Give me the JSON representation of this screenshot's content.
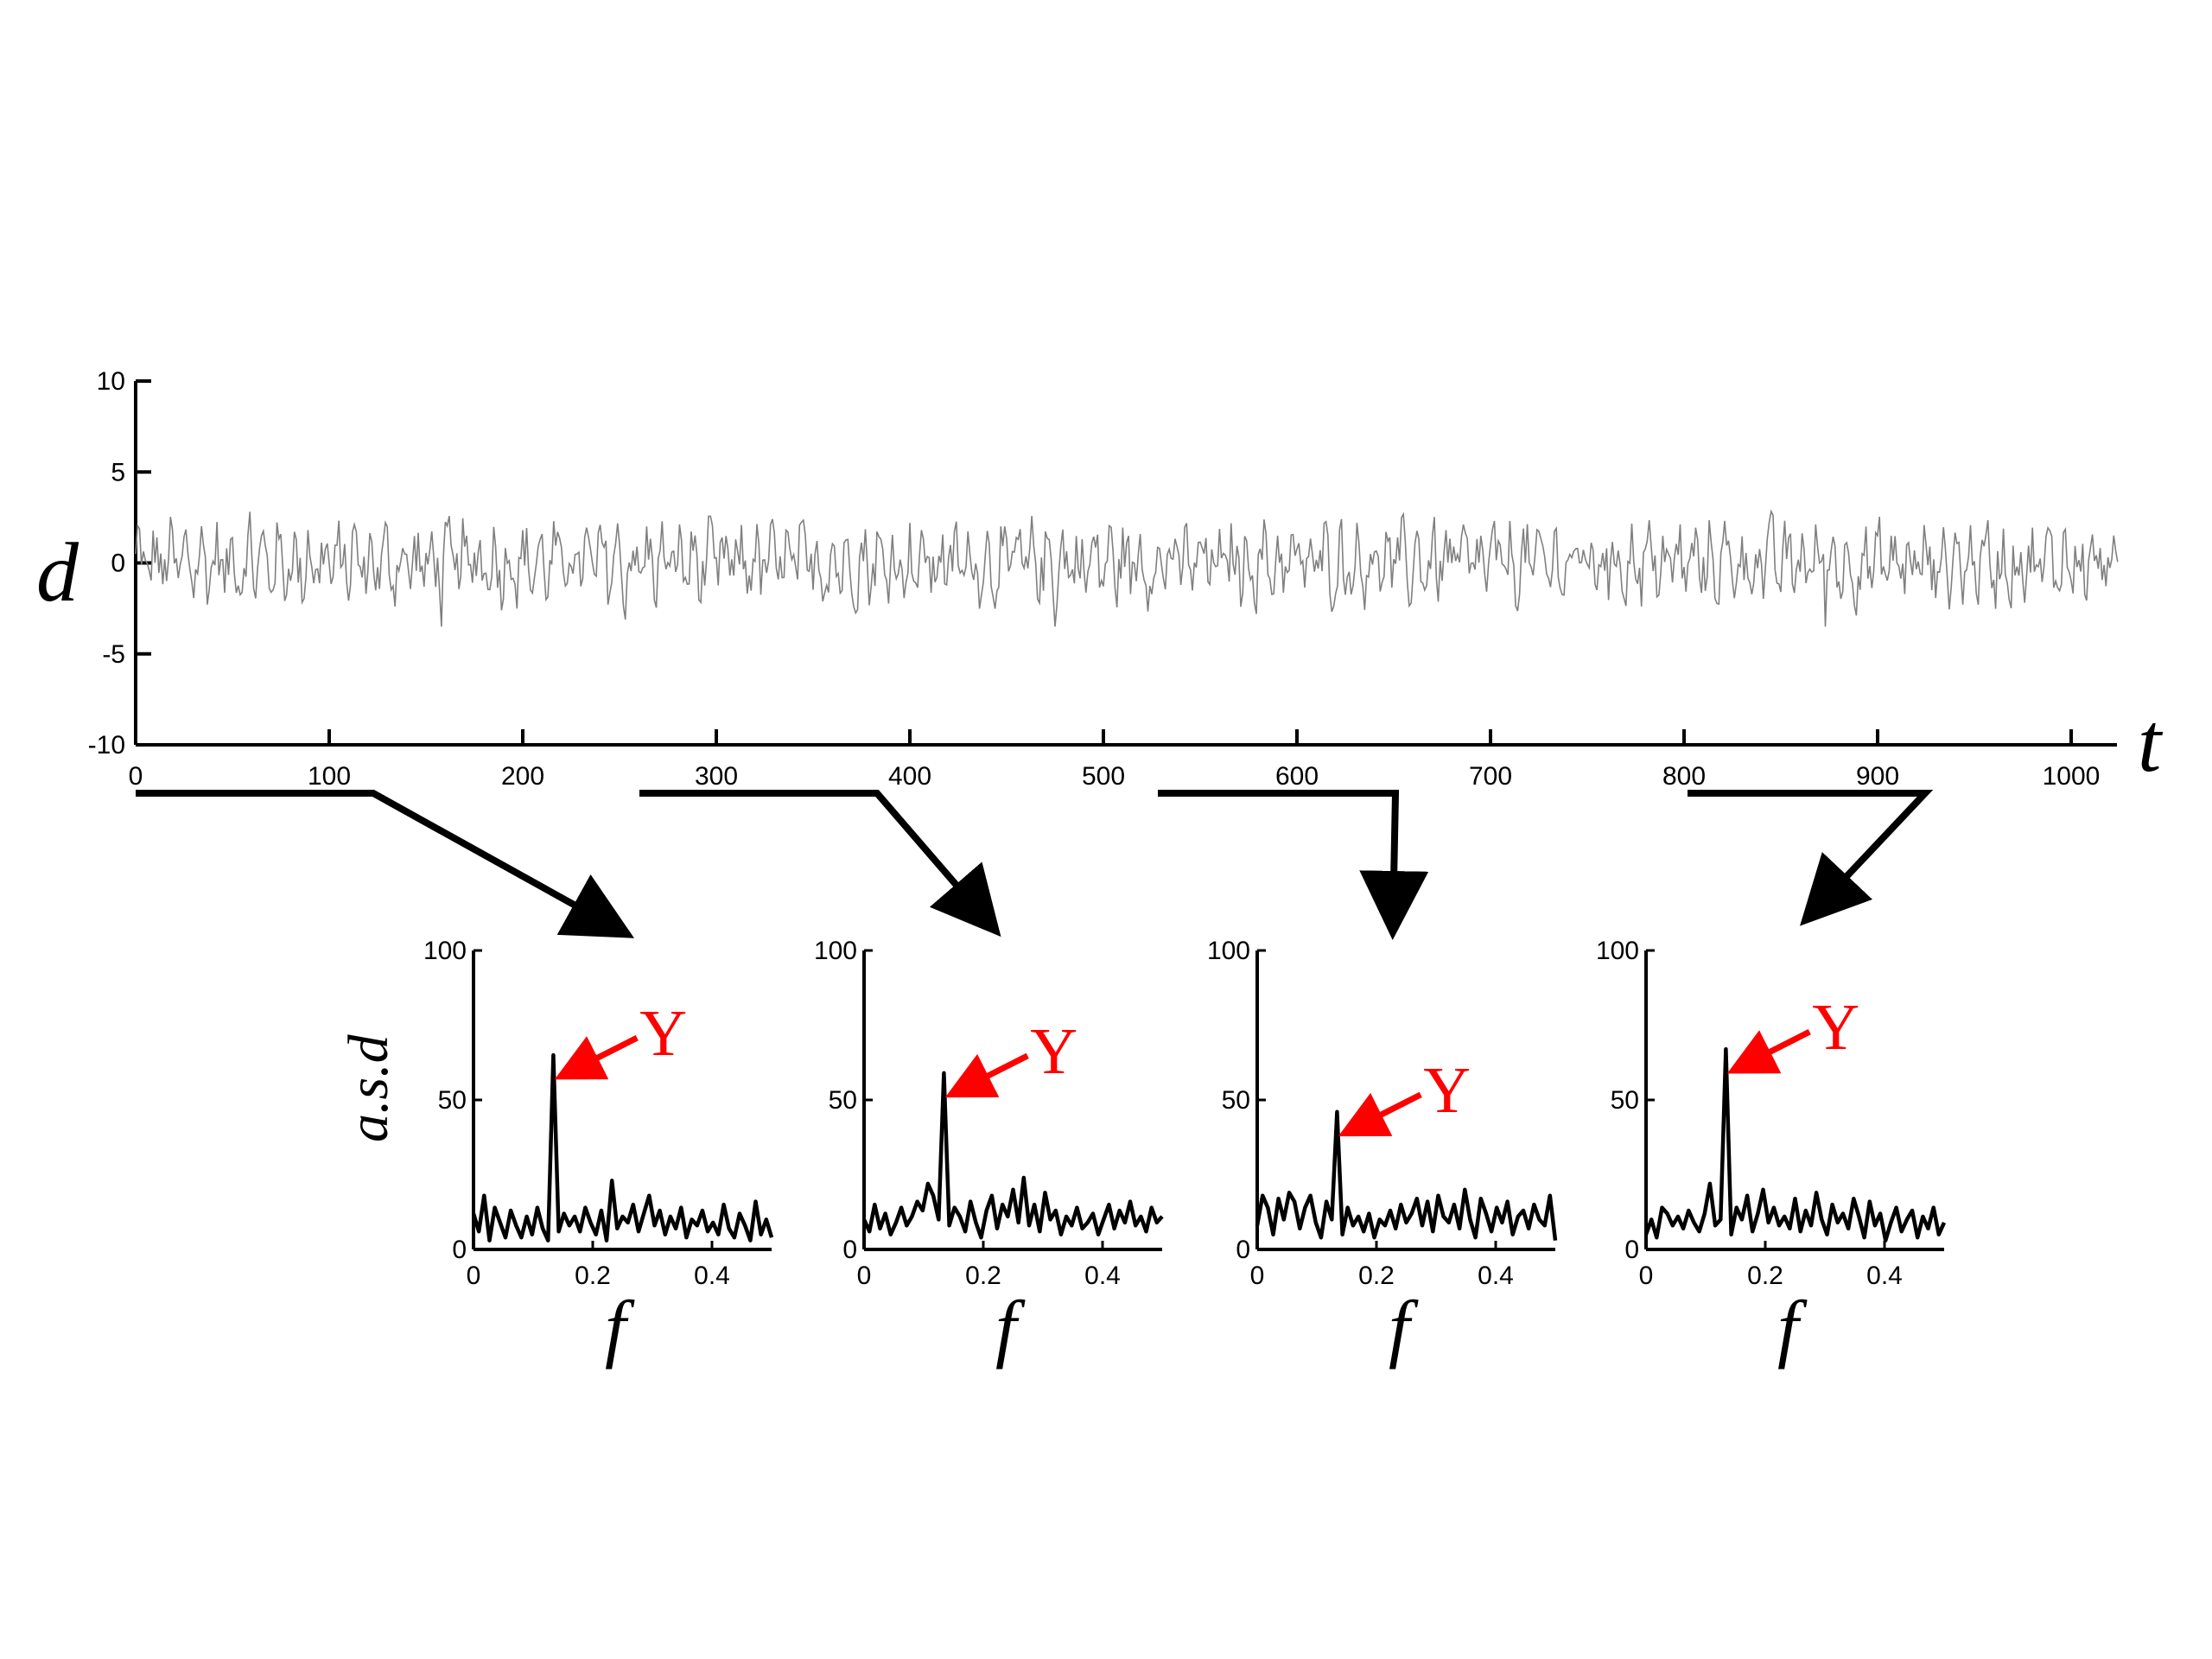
{
  "figure": {
    "main_xlabel": "t",
    "main_ylabel": "d",
    "spectrum_xlabel": "f",
    "spectrum_ylabel": "a.s.d",
    "peak_annotation": "Y",
    "colors": {
      "signal": "#808080",
      "spectrum": "#000000",
      "annotation": "#ff0000",
      "connector": "#000000"
    }
  },
  "chart_data": [
    {
      "type": "line",
      "id": "time-series",
      "xlabel": "t",
      "ylabel": "d",
      "xlim": [
        0,
        1024
      ],
      "ylim": [
        -10,
        10
      ],
      "xticks": [
        0,
        100,
        200,
        300,
        400,
        500,
        600,
        700,
        800,
        900,
        1000
      ],
      "yticks": [
        10,
        5,
        0,
        -5,
        -10
      ],
      "series_description": "noisy oscillation around 0, amplitude about 2-3, peaks up to about 3",
      "series": [
        {
          "x_start": 0,
          "x_end": 1024,
          "envelope": [
            -3.5,
            3.2
          ]
        }
      ],
      "grid": false
    },
    {
      "type": "line",
      "id": "spectrum-1",
      "window": [
        0,
        125
      ],
      "xlabel": "f",
      "ylabel": "a.s.d",
      "xlim": [
        0,
        0.5
      ],
      "ylim": [
        0,
        100
      ],
      "xticks": [
        0,
        0.2,
        0.4
      ],
      "yticks": [
        100,
        50,
        0
      ],
      "peak": {
        "f": 0.125,
        "value": 65,
        "label": "Y"
      },
      "values": [
        12,
        6,
        18,
        3,
        14,
        9,
        4,
        13,
        8,
        4,
        11,
        5,
        14,
        7,
        3,
        65,
        6,
        12,
        8,
        11,
        6,
        14,
        9,
        5,
        13,
        3,
        23,
        7,
        11,
        9,
        15,
        6,
        12,
        18,
        8,
        13,
        5,
        11,
        7,
        14,
        4,
        10,
        8,
        13,
        6,
        9,
        5,
        15,
        7,
        4,
        12,
        8,
        3,
        16,
        5,
        10,
        4
      ]
    },
    {
      "type": "line",
      "id": "spectrum-2",
      "window": [
        260,
        385
      ],
      "xlabel": "f",
      "ylabel": "",
      "xlim": [
        0,
        0.5
      ],
      "ylim": [
        0,
        100
      ],
      "xticks": [
        0,
        0.2,
        0.4
      ],
      "yticks": [
        100,
        50,
        0
      ],
      "peak": {
        "f": 0.125,
        "value": 59,
        "label": "Y"
      },
      "values": [
        10,
        6,
        15,
        7,
        12,
        5,
        9,
        14,
        8,
        11,
        16,
        13,
        22,
        18,
        10,
        59,
        8,
        14,
        11,
        6,
        16,
        9,
        4,
        13,
        18,
        7,
        15,
        11,
        20,
        9,
        24,
        8,
        15,
        6,
        19,
        10,
        13,
        5,
        11,
        8,
        14,
        7,
        9,
        12,
        5,
        10,
        15,
        7,
        13,
        9,
        16,
        8,
        11,
        6,
        14,
        9,
        11
      ]
    },
    {
      "type": "line",
      "id": "spectrum-3",
      "window": [
        525,
        650
      ],
      "xlabel": "f",
      "ylabel": "",
      "xlim": [
        0,
        0.5
      ],
      "ylim": [
        0,
        100
      ],
      "xticks": [
        0,
        0.2,
        0.4
      ],
      "yticks": [
        100,
        50,
        0
      ],
      "peak": {
        "f": 0.125,
        "value": 46,
        "label": "Y"
      },
      "values": [
        8,
        18,
        14,
        5,
        17,
        10,
        19,
        16,
        7,
        14,
        18,
        9,
        4,
        16,
        10,
        46,
        5,
        14,
        8,
        11,
        6,
        12,
        4,
        10,
        8,
        13,
        7,
        15,
        9,
        12,
        17,
        8,
        16,
        6,
        18,
        11,
        9,
        15,
        7,
        20,
        10,
        4,
        17,
        12,
        6,
        14,
        9,
        16,
        5,
        11,
        13,
        7,
        15,
        10,
        8,
        18,
        3
      ]
    },
    {
      "type": "line",
      "id": "spectrum-4",
      "window": [
        800,
        925
      ],
      "xlabel": "f",
      "ylabel": "",
      "xlim": [
        0,
        0.5
      ],
      "ylim": [
        0,
        100
      ],
      "xticks": [
        0,
        0.2,
        0.4
      ],
      "yticks": [
        100,
        50,
        0
      ],
      "peak": {
        "f": 0.125,
        "value": 67,
        "label": "Y"
      },
      "values": [
        5,
        10,
        4,
        14,
        12,
        8,
        11,
        7,
        13,
        9,
        6,
        12,
        22,
        8,
        10,
        67,
        5,
        14,
        10,
        18,
        6,
        12,
        20,
        9,
        14,
        8,
        11,
        7,
        17,
        6,
        13,
        8,
        19,
        10,
        5,
        15,
        9,
        12,
        7,
        17,
        11,
        4,
        16,
        8,
        12,
        3,
        9,
        14,
        6,
        10,
        13,
        4,
        11,
        7,
        14,
        5,
        9
      ]
    }
  ]
}
